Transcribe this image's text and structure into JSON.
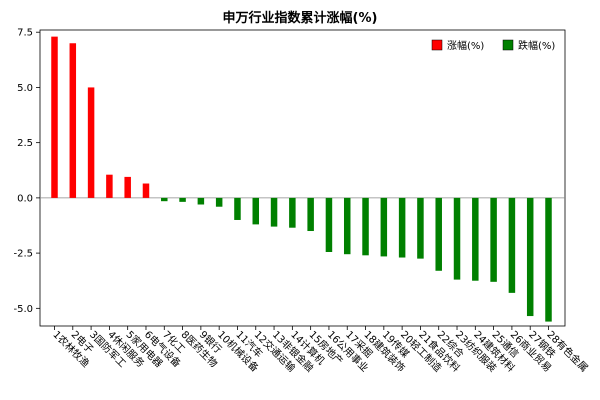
{
  "chart_data": {
    "type": "bar",
    "title": "申万行业指数累计涨幅(%)",
    "xlabel": "",
    "ylabel": "",
    "ylim": [
      -5.8,
      7.6
    ],
    "yticks": [
      7.5,
      5.0,
      2.5,
      0.0,
      -2.5,
      -5.0
    ],
    "ytick_labels": [
      "7.5",
      "5.0",
      "2.5",
      "0.0",
      "-2.5",
      "-5.0"
    ],
    "legend_position": "top-right",
    "categories": [
      "1农林牧渔",
      "2电子",
      "3国防军工",
      "4休闲服务",
      "5家用电器",
      "6电气设备",
      "7化工",
      "8医药生物",
      "9银行",
      "10机械设备",
      "11汽车",
      "12交通运输",
      "13非银金融",
      "14计算机",
      "15房地产",
      "16公用事业",
      "17采掘",
      "18建筑装饰",
      "19传媒",
      "20轻工制造",
      "21食品饮料",
      "22综合",
      "23纺织服装",
      "24建筑材料",
      "25通信",
      "26商业贸易",
      "27钢铁",
      "28有色金属"
    ],
    "values": [
      7.3,
      7.0,
      5.0,
      1.05,
      0.95,
      0.65,
      -0.15,
      -0.18,
      -0.3,
      -0.4,
      -1.0,
      -1.2,
      -1.3,
      -1.35,
      -1.5,
      -2.45,
      -2.55,
      -2.6,
      -2.65,
      -2.7,
      -2.75,
      -3.3,
      -3.7,
      -3.75,
      -3.8,
      -4.3,
      -5.35,
      -5.6
    ],
    "series": [
      {
        "name": "涨幅(%)",
        "color": "#ff0000"
      },
      {
        "name": "跌幅(%)",
        "color": "#008000"
      }
    ]
  }
}
